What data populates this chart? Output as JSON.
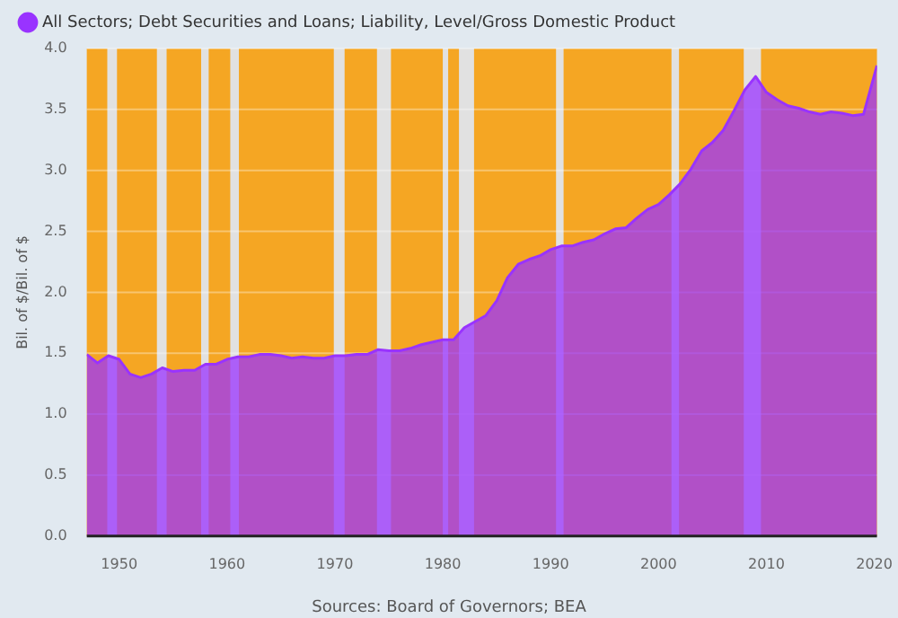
{
  "chart_data": {
    "type": "area",
    "ylabel": "Bil. of $/Bil. of $",
    "legend": "top left",
    "grid": "y",
    "x": [
      1947,
      1948,
      1949,
      1950,
      1951,
      1952,
      1953,
      1954,
      1955,
      1956,
      1957,
      1958,
      1959,
      1960,
      1961,
      1962,
      1963,
      1964,
      1965,
      1966,
      1967,
      1968,
      1969,
      1970,
      1971,
      1972,
      1973,
      1974,
      1975,
      1976,
      1977,
      1978,
      1979,
      1980,
      1981,
      1982,
      1983,
      1984,
      1985,
      1986,
      1987,
      1988,
      1989,
      1990,
      1991,
      1992,
      1993,
      1994,
      1995,
      1996,
      1997,
      1998,
      1999,
      2000,
      2001,
      2002,
      2003,
      2004,
      2005,
      2006,
      2007,
      2008,
      2009,
      2010,
      2011,
      2012,
      2013,
      2014,
      2015,
      2016,
      2017,
      2018,
      2019,
      2020.25
    ],
    "series": [
      {
        "name": "All Sectors; Debt Securities and Loans; Liability, Level/Gross Domestic Product",
        "color": "#9933ff",
        "values": [
          1.49,
          1.42,
          1.48,
          1.45,
          1.33,
          1.3,
          1.33,
          1.38,
          1.35,
          1.36,
          1.36,
          1.41,
          1.41,
          1.45,
          1.47,
          1.47,
          1.49,
          1.49,
          1.48,
          1.46,
          1.47,
          1.46,
          1.46,
          1.48,
          1.48,
          1.49,
          1.49,
          1.53,
          1.52,
          1.52,
          1.54,
          1.57,
          1.59,
          1.61,
          1.61,
          1.71,
          1.76,
          1.81,
          1.93,
          2.12,
          2.23,
          2.27,
          2.3,
          2.35,
          2.38,
          2.38,
          2.41,
          2.43,
          2.48,
          2.52,
          2.53,
          2.61,
          2.68,
          2.72,
          2.8,
          2.89,
          3.01,
          3.16,
          3.23,
          3.33,
          3.49,
          3.66,
          3.77,
          3.64,
          3.58,
          3.53,
          3.51,
          3.48,
          3.46,
          3.48,
          3.47,
          3.45,
          3.46,
          3.86
        ]
      }
    ],
    "xlim": [
      1947,
      2020.25
    ],
    "xticks": [
      1950,
      1960,
      1970,
      1980,
      1990,
      2000,
      2010,
      2020
    ],
    "ylim": [
      0,
      4
    ],
    "yticks": [
      {
        "value": 0,
        "label": "0.0"
      },
      {
        "value": 0.5,
        "label": "0.5"
      },
      {
        "value": 1,
        "label": "1.0"
      },
      {
        "value": 1.5,
        "label": "1.5"
      },
      {
        "value": 2,
        "label": "2.0"
      },
      {
        "value": 2.5,
        "label": "2.5"
      },
      {
        "value": 3,
        "label": "3.0"
      },
      {
        "value": 3.5,
        "label": "3.5"
      },
      {
        "value": 4,
        "label": "4.0"
      }
    ],
    "bands": [
      {
        "axis": "y",
        "from": 0,
        "to": 4,
        "color": "#f5a623"
      },
      {
        "axis": "x",
        "from": 1948.9,
        "to": 1949.8,
        "color": "#e1e1e1"
      },
      {
        "axis": "x",
        "from": 1953.5,
        "to": 1954.4,
        "color": "#e1e1e1"
      },
      {
        "axis": "x",
        "from": 1957.6,
        "to": 1958.3,
        "color": "#e1e1e1"
      },
      {
        "axis": "x",
        "from": 1960.3,
        "to": 1961.1,
        "color": "#e1e1e1"
      },
      {
        "axis": "x",
        "from": 1969.9,
        "to": 1970.9,
        "color": "#e1e1e1"
      },
      {
        "axis": "x",
        "from": 1973.9,
        "to": 1975.2,
        "color": "#e1e1e1"
      },
      {
        "axis": "x",
        "from": 1980.0,
        "to": 1980.5,
        "color": "#e1e1e1"
      },
      {
        "axis": "x",
        "from": 1981.5,
        "to": 1982.9,
        "color": "#e1e1e1"
      },
      {
        "axis": "x",
        "from": 1990.5,
        "to": 1991.2,
        "color": "#e1e1e1"
      },
      {
        "axis": "x",
        "from": 2001.2,
        "to": 2001.9,
        "color": "#e1e1e1"
      },
      {
        "axis": "x",
        "from": 2007.9,
        "to": 2009.5,
        "color": "#e1e1e1"
      }
    ],
    "annotations": [
      "Sources: Board of Governors; BEA"
    ]
  }
}
